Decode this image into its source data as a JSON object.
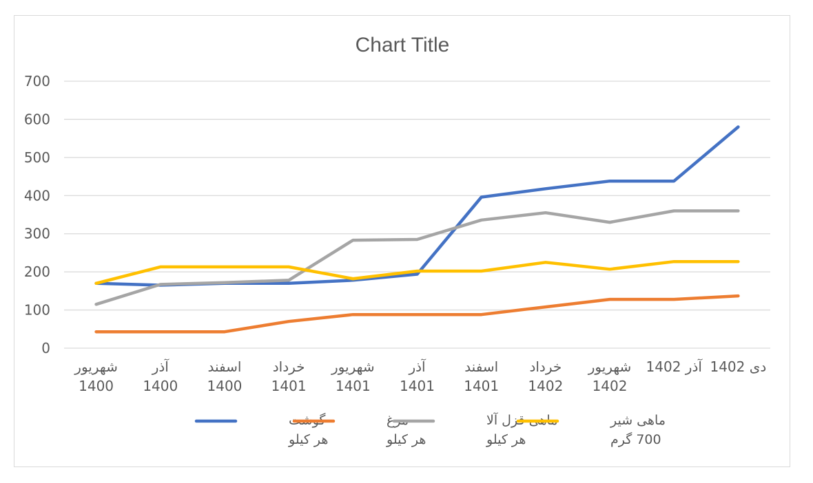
{
  "chart_data": {
    "type": "line",
    "title": "Chart Title",
    "xlabel": "",
    "ylabel": "",
    "ylim": [
      0,
      700
    ],
    "yticks": [
      "0",
      "100",
      "200",
      "300",
      "400",
      "500",
      "600",
      "700"
    ],
    "grid": true,
    "legend_position": "bottom",
    "categories": [
      [
        "شهریور",
        "1400"
      ],
      [
        "آذر",
        "1400"
      ],
      [
        "اسفند",
        "1400"
      ],
      [
        "خرداد",
        "1401"
      ],
      [
        "شهریور",
        "1401"
      ],
      [
        "آذر",
        "1401"
      ],
      [
        "اسفند",
        "1401"
      ],
      [
        "خرداد",
        "1402"
      ],
      [
        "شهریور",
        "1402"
      ],
      [
        "آذر 1402"
      ],
      [
        "دی 1402"
      ]
    ],
    "series": [
      {
        "name": [
          "گوشت",
          "هر کیلو"
        ],
        "color": "#4472C4",
        "values": [
          170,
          165,
          170,
          170,
          178,
          194,
          396,
          418,
          438,
          438,
          580
        ]
      },
      {
        "name": [
          "مرغ",
          "هر کیلو"
        ],
        "color": "#ED7D31",
        "values": [
          43,
          43,
          43,
          70,
          88,
          88,
          88,
          108,
          128,
          128,
          137
        ]
      },
      {
        "name": [
          "ماهی قزل آلا",
          "هر کیلو"
        ],
        "color": "#A5A5A5",
        "values": [
          115,
          167,
          172,
          178,
          283,
          285,
          336,
          355,
          330,
          360,
          360
        ]
      },
      {
        "name": [
          "ماهی شیر",
          "700 گرم"
        ],
        "color": "#FFC000",
        "values": [
          170,
          213,
          213,
          213,
          182,
          202,
          202,
          225,
          207,
          227,
          227
        ]
      }
    ]
  }
}
